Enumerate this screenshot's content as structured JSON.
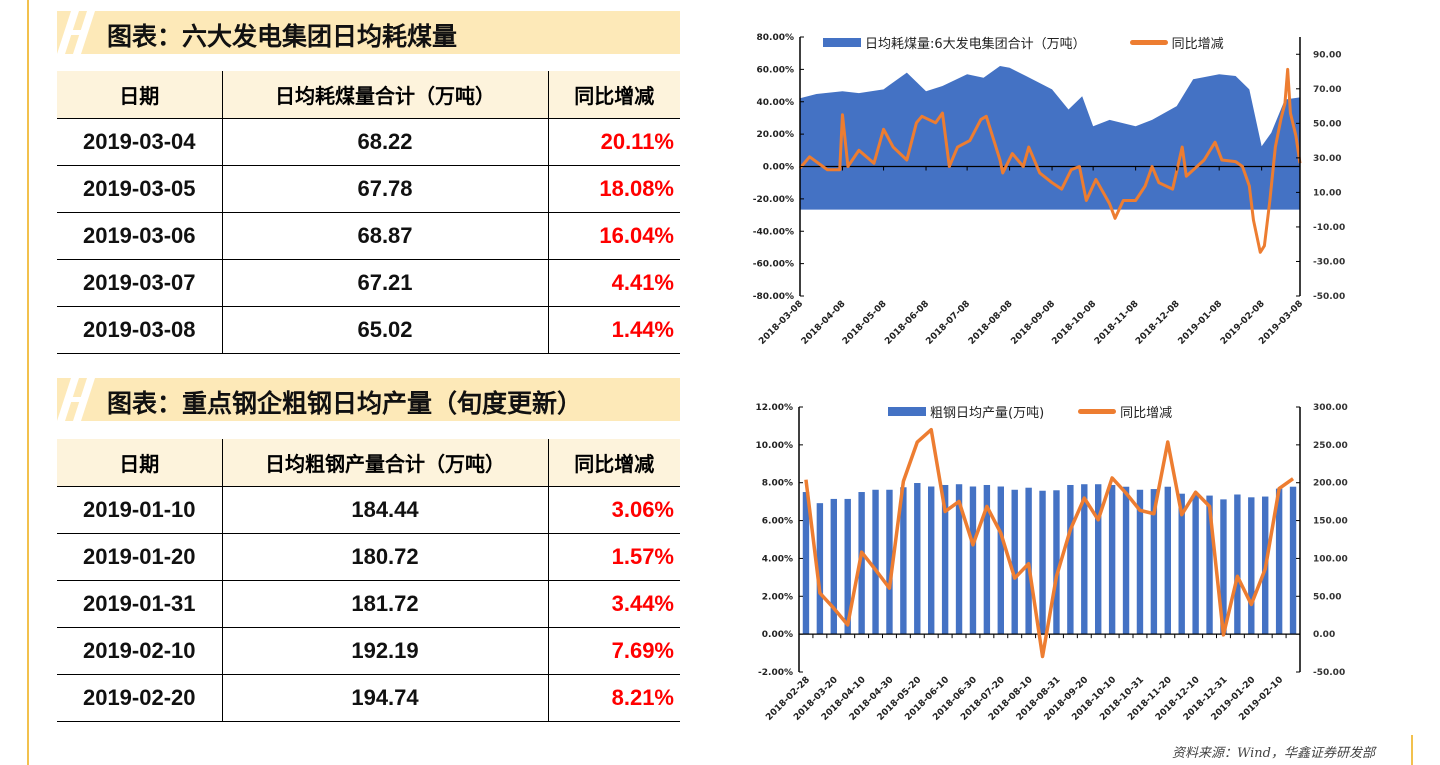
{
  "section1": {
    "title": "图表：六大发电集团日均耗煤量",
    "table": {
      "headers": [
        "日期",
        "日均耗煤量合计（万吨）",
        "同比增减"
      ],
      "rows": [
        [
          "2019-03-04",
          "68.22",
          "20.11%"
        ],
        [
          "2019-03-05",
          "67.78",
          "18.08%"
        ],
        [
          "2019-03-06",
          "68.87",
          "16.04%"
        ],
        [
          "2019-03-07",
          "67.21",
          "4.41%"
        ],
        [
          "2019-03-08",
          "65.02",
          "1.44%"
        ]
      ]
    }
  },
  "section2": {
    "title": "图表：重点钢企粗钢日均产量（旬度更新）",
    "table": {
      "headers": [
        "日期",
        "日均粗钢产量合计（万吨）",
        "同比增减"
      ],
      "rows": [
        [
          "2019-01-10",
          "184.44",
          "3.06%"
        ],
        [
          "2019-01-20",
          "180.72",
          "1.57%"
        ],
        [
          "2019-01-31",
          "181.72",
          "3.44%"
        ],
        [
          "2019-02-10",
          "192.19",
          "7.69%"
        ],
        [
          "2019-02-20",
          "194.74",
          "8.21%"
        ]
      ]
    }
  },
  "source": "资料来源：Wind，华鑫证券研发部",
  "colors": {
    "bar": "#4472c4",
    "line": "#ed7d31",
    "negative": "#ff0000",
    "banner": "#fde9b8",
    "header": "#fdf3dc"
  },
  "chart_data": [
    {
      "type": "area+line",
      "legend": [
        "日均耗煤量:6大发电集团合计（万吨）",
        "同比增减"
      ],
      "legend_position": "top",
      "x_ticks": [
        "2018-03-08",
        "2018-04-08",
        "2018-05-08",
        "2018-06-08",
        "2018-07-08",
        "2018-08-08",
        "2018-09-08",
        "2018-10-08",
        "2018-11-08",
        "2018-12-08",
        "2019-01-08",
        "2019-02-08",
        "2019-03-08"
      ],
      "y_left": {
        "ticks": [
          "80.00%",
          "60.00%",
          "40.00%",
          "20.00%",
          "0.00%",
          "-20.00%",
          "-40.00%",
          "-60.00%",
          "-80.00%"
        ],
        "range": [
          -80,
          80
        ]
      },
      "y_right": {
        "ticks": [
          "90.00",
          "70.00",
          "50.00",
          "30.00",
          "10.00",
          "-10.00",
          "-30.00",
          "-50.00"
        ],
        "range": [
          -50,
          100
        ]
      },
      "series": [
        {
          "name": "日均耗煤量:6大发电集团合计（万吨）",
          "axis": "right",
          "type": "area",
          "points": [
            [
              "2018-03-08",
              64.5
            ],
            [
              "2018-03-20",
              67
            ],
            [
              "2018-04-08",
              68.6
            ],
            [
              "2018-04-20",
              67.5
            ],
            [
              "2018-05-08",
              69.7
            ],
            [
              "2018-05-25",
              79.4
            ],
            [
              "2018-06-08",
              68.6
            ],
            [
              "2018-06-20",
              71.6
            ],
            [
              "2018-07-08",
              78.4
            ],
            [
              "2018-07-20",
              76.4
            ],
            [
              "2018-08-01",
              83.2
            ],
            [
              "2018-08-08",
              82.2
            ],
            [
              "2018-08-20",
              77.4
            ],
            [
              "2018-09-08",
              69.7
            ],
            [
              "2018-09-20",
              58
            ],
            [
              "2018-09-30",
              65.7
            ],
            [
              "2018-10-08",
              48.3
            ],
            [
              "2018-10-20",
              52
            ],
            [
              "2018-11-08",
              48.3
            ],
            [
              "2018-11-20",
              52
            ],
            [
              "2018-12-08",
              60
            ],
            [
              "2018-12-20",
              75.5
            ],
            [
              "2019-01-08",
              78.4
            ],
            [
              "2019-01-20",
              77.4
            ],
            [
              "2019-01-30",
              69.7
            ],
            [
              "2019-02-08",
              36.7
            ],
            [
              "2019-02-15",
              44.5
            ],
            [
              "2019-02-25",
              63.8
            ],
            [
              "2019-03-08",
              65
            ]
          ]
        },
        {
          "name": "同比增减",
          "axis": "left",
          "type": "line",
          "points": [
            [
              "2018-03-08",
              -1
            ],
            [
              "2018-03-15",
              6
            ],
            [
              "2018-03-28",
              -2
            ],
            [
              "2018-04-06",
              -2
            ],
            [
              "2018-04-08",
              32
            ],
            [
              "2018-04-12",
              0
            ],
            [
              "2018-04-20",
              10
            ],
            [
              "2018-05-01",
              2
            ],
            [
              "2018-05-08",
              23
            ],
            [
              "2018-05-15",
              12
            ],
            [
              "2018-05-25",
              4
            ],
            [
              "2018-06-01",
              27
            ],
            [
              "2018-06-05",
              31
            ],
            [
              "2018-06-15",
              27
            ],
            [
              "2018-06-20",
              33
            ],
            [
              "2018-06-25",
              0
            ],
            [
              "2018-07-01",
              12
            ],
            [
              "2018-07-10",
              16
            ],
            [
              "2018-07-18",
              29
            ],
            [
              "2018-07-22",
              31
            ],
            [
              "2018-08-01",
              4
            ],
            [
              "2018-08-03",
              -4
            ],
            [
              "2018-08-10",
              8
            ],
            [
              "2018-08-18",
              0
            ],
            [
              "2018-08-22",
              12
            ],
            [
              "2018-08-30",
              -4
            ],
            [
              "2018-09-08",
              -10
            ],
            [
              "2018-09-15",
              -14
            ],
            [
              "2018-09-22",
              -2
            ],
            [
              "2018-09-28",
              0
            ],
            [
              "2018-10-03",
              -21
            ],
            [
              "2018-10-10",
              -8
            ],
            [
              "2018-10-20",
              -23
            ],
            [
              "2018-10-24",
              -32
            ],
            [
              "2018-10-30",
              -21
            ],
            [
              "2018-11-08",
              -21
            ],
            [
              "2018-11-15",
              -12
            ],
            [
              "2018-11-20",
              0
            ],
            [
              "2018-11-25",
              -10
            ],
            [
              "2018-12-05",
              -14
            ],
            [
              "2018-12-12",
              12
            ],
            [
              "2018-12-15",
              -6
            ],
            [
              "2018-12-28",
              4
            ],
            [
              "2019-01-05",
              15
            ],
            [
              "2019-01-10",
              4
            ],
            [
              "2019-01-20",
              3
            ],
            [
              "2019-01-25",
              0
            ],
            [
              "2019-01-30",
              -12
            ],
            [
              "2019-02-02",
              -33
            ],
            [
              "2019-02-07",
              -53
            ],
            [
              "2019-02-10",
              -49
            ],
            [
              "2019-02-14",
              -21
            ],
            [
              "2019-02-18",
              12
            ],
            [
              "2019-02-22",
              29
            ],
            [
              "2019-02-25",
              39
            ],
            [
              "2019-02-27",
              60
            ],
            [
              "2019-03-01",
              33
            ],
            [
              "2019-03-05",
              19
            ],
            [
              "2019-03-08",
              2
            ]
          ]
        }
      ]
    },
    {
      "type": "bar+line",
      "legend": [
        "粗钢日均产量(万吨)",
        "同比增减"
      ],
      "legend_position": "top",
      "categories": [
        "2018-02-28",
        "2018-03-10",
        "2018-03-20",
        "2018-03-31",
        "2018-04-10",
        "2018-04-20",
        "2018-04-30",
        "2018-05-10",
        "2018-05-20",
        "2018-05-31",
        "2018-06-10",
        "2018-06-20",
        "2018-06-30",
        "2018-07-10",
        "2018-07-20",
        "2018-07-31",
        "2018-08-10",
        "2018-08-20",
        "2018-08-31",
        "2018-09-10",
        "2018-09-20",
        "2018-09-30",
        "2018-10-10",
        "2018-10-20",
        "2018-10-31",
        "2018-11-10",
        "2018-11-20",
        "2018-11-30",
        "2018-12-10",
        "2018-12-20",
        "2018-12-31",
        "2019-01-10",
        "2019-01-20",
        "2019-01-31",
        "2019-02-10",
        "2019-02-20"
      ],
      "x_tick_labels": [
        "2018-02-28",
        "2018-03-20",
        "2018-04-10",
        "2018-04-30",
        "2018-05-20",
        "2018-06-10",
        "2018-06-30",
        "2018-07-20",
        "2018-08-10",
        "2018-08-31",
        "2018-09-20",
        "2018-10-10",
        "2018-10-31",
        "2018-11-20",
        "2018-12-10",
        "2018-12-31",
        "2019-01-20",
        "2019-02-10"
      ],
      "y_left": {
        "ticks": [
          "12.00%",
          "10.00%",
          "8.00%",
          "6.00%",
          "4.00%",
          "2.00%",
          "0.00%",
          "-2.00%"
        ],
        "range": [
          -2,
          12
        ]
      },
      "y_right": {
        "ticks": [
          "300.00",
          "250.00",
          "200.00",
          "150.00",
          "100.00",
          "50.00",
          "0.00",
          "-50.00"
        ],
        "range": [
          -50,
          300
        ]
      },
      "series": [
        {
          "name": "粗钢日均产量(万吨)",
          "axis": "right",
          "type": "bar",
          "values": [
            187.7,
            173,
            178.6,
            178.6,
            187.7,
            190.7,
            190.7,
            194,
            199.6,
            195,
            197,
            198,
            195,
            197,
            195,
            190.7,
            193.4,
            189.4,
            190,
            197,
            198,
            198,
            197,
            194.7,
            190.7,
            191.6,
            194.7,
            185.5,
            184,
            183,
            178,
            184.44,
            180.72,
            181.72,
            192.19,
            194.74
          ]
        },
        {
          "name": "同比增减",
          "axis": "left",
          "type": "line",
          "values": [
            8.16,
            2.17,
            1.37,
            0.49,
            4.33,
            3.4,
            2.43,
            8.07,
            10.15,
            10.8,
            6.48,
            7.01,
            4.72,
            6.75,
            5.34,
            2.96,
            3.72,
            -1.18,
            3.05,
            5.52,
            7.19,
            6.04,
            8.25,
            7.45,
            6.54,
            6.36,
            10.15,
            6.31,
            7.5,
            6.75,
            -0.04,
            3.06,
            1.57,
            3.44,
            7.69,
            8.21
          ]
        }
      ]
    }
  ]
}
